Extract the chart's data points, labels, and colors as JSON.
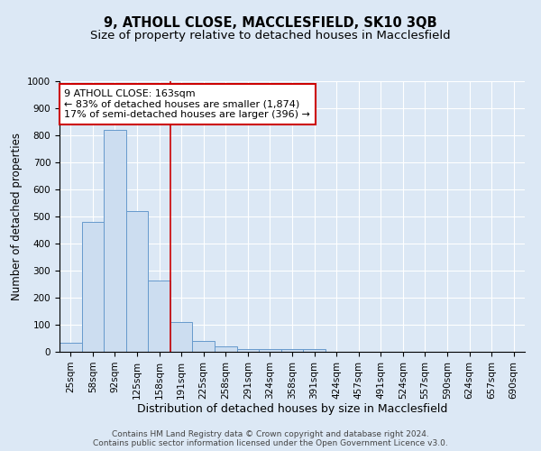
{
  "title1": "9, ATHOLL CLOSE, MACCLESFIELD, SK10 3QB",
  "title2": "Size of property relative to detached houses in Macclesfield",
  "xlabel": "Distribution of detached houses by size in Macclesfield",
  "ylabel": "Number of detached properties",
  "bin_labels": [
    "25sqm",
    "58sqm",
    "92sqm",
    "125sqm",
    "158sqm",
    "191sqm",
    "225sqm",
    "258sqm",
    "291sqm",
    "324sqm",
    "358sqm",
    "391sqm",
    "424sqm",
    "457sqm",
    "491sqm",
    "524sqm",
    "557sqm",
    "590sqm",
    "624sqm",
    "657sqm",
    "690sqm"
  ],
  "bar_values": [
    35,
    480,
    820,
    520,
    265,
    110,
    40,
    20,
    10,
    10,
    10,
    10,
    0,
    0,
    0,
    0,
    0,
    0,
    0,
    0,
    0
  ],
  "bar_color": "#ccddf0",
  "bar_edge_color": "#6699cc",
  "ylim": [
    0,
    1000
  ],
  "yticks": [
    0,
    100,
    200,
    300,
    400,
    500,
    600,
    700,
    800,
    900,
    1000
  ],
  "vline_x": 4.5,
  "vline_color": "#cc0000",
  "annotation_text": "9 ATHOLL CLOSE: 163sqm\n← 83% of detached houses are smaller (1,874)\n17% of semi-detached houses are larger (396) →",
  "annotation_box_facecolor": "#ffffff",
  "annotation_box_edgecolor": "#cc0000",
  "background_color": "#dce8f5",
  "grid_color": "#ffffff",
  "footer1": "Contains HM Land Registry data © Crown copyright and database right 2024.",
  "footer2": "Contains public sector information licensed under the Open Government Licence v3.0.",
  "title1_fontsize": 10.5,
  "title2_fontsize": 9.5,
  "xlabel_fontsize": 9,
  "ylabel_fontsize": 8.5,
  "tick_fontsize": 7.5,
  "annotation_fontsize": 8,
  "footer_fontsize": 6.5
}
